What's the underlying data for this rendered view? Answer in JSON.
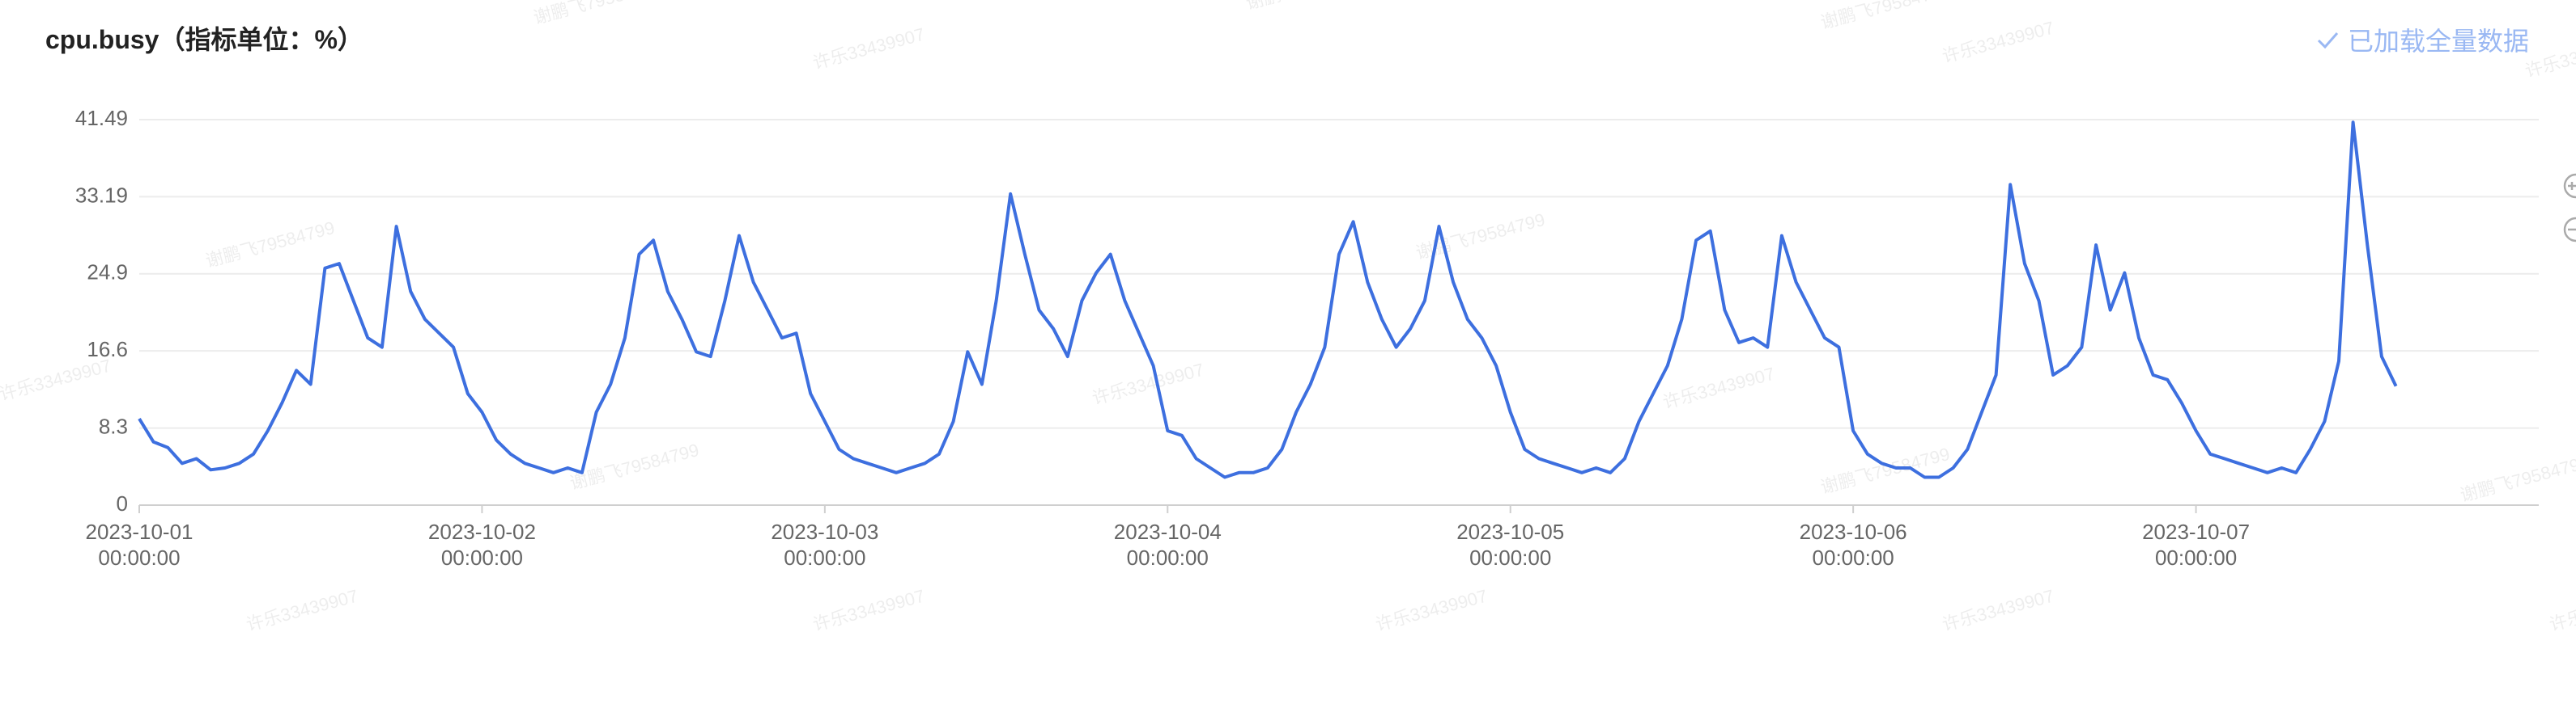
{
  "header": {
    "status_text": "已加载全量数据"
  },
  "watermarks": [
    "谢鹏飞79584799",
    "许乐33439907"
  ],
  "chart_data": {
    "type": "line",
    "title": "cpu.busy（指标单位：%）",
    "color": "#3d6fdf",
    "grid": true,
    "ylim": [
      0,
      41.49
    ],
    "yticks": [
      0,
      8.3,
      16.6,
      24.9,
      33.19,
      41.49
    ],
    "xlim": [
      "2023-10-01 00:00:00",
      "2023-10-08 00:00:00"
    ],
    "xticks": [
      "2023-10-01 00:00:00",
      "2023-10-02 00:00:00",
      "2023-10-03 00:00:00",
      "2023-10-04 00:00:00",
      "2023-10-05 00:00:00",
      "2023-10-06 00:00:00",
      "2023-10-07 00:00:00"
    ],
    "x": [
      "2023-10-01 00:00:00",
      "2023-10-01 01:00:00",
      "2023-10-01 02:00:00",
      "2023-10-01 03:00:00",
      "2023-10-01 04:00:00",
      "2023-10-01 05:00:00",
      "2023-10-01 06:00:00",
      "2023-10-01 07:00:00",
      "2023-10-01 08:00:00",
      "2023-10-01 09:00:00",
      "2023-10-01 10:00:00",
      "2023-10-01 11:00:00",
      "2023-10-01 12:00:00",
      "2023-10-01 13:00:00",
      "2023-10-01 14:00:00",
      "2023-10-01 15:00:00",
      "2023-10-01 16:00:00",
      "2023-10-01 17:00:00",
      "2023-10-01 18:00:00",
      "2023-10-01 19:00:00",
      "2023-10-01 20:00:00",
      "2023-10-01 21:00:00",
      "2023-10-01 22:00:00",
      "2023-10-01 23:00:00",
      "2023-10-02 00:00:00",
      "2023-10-02 01:00:00",
      "2023-10-02 02:00:00",
      "2023-10-02 03:00:00",
      "2023-10-02 04:00:00",
      "2023-10-02 05:00:00",
      "2023-10-02 06:00:00",
      "2023-10-02 07:00:00",
      "2023-10-02 08:00:00",
      "2023-10-02 09:00:00",
      "2023-10-02 10:00:00",
      "2023-10-02 11:00:00",
      "2023-10-02 12:00:00",
      "2023-10-02 13:00:00",
      "2023-10-02 14:00:00",
      "2023-10-02 15:00:00",
      "2023-10-02 16:00:00",
      "2023-10-02 17:00:00",
      "2023-10-02 18:00:00",
      "2023-10-02 19:00:00",
      "2023-10-02 20:00:00",
      "2023-10-02 21:00:00",
      "2023-10-02 22:00:00",
      "2023-10-02 23:00:00",
      "2023-10-03 00:00:00",
      "2023-10-03 01:00:00",
      "2023-10-03 02:00:00",
      "2023-10-03 03:00:00",
      "2023-10-03 04:00:00",
      "2023-10-03 05:00:00",
      "2023-10-03 06:00:00",
      "2023-10-03 07:00:00",
      "2023-10-03 08:00:00",
      "2023-10-03 09:00:00",
      "2023-10-03 10:00:00",
      "2023-10-03 11:00:00",
      "2023-10-03 12:00:00",
      "2023-10-03 13:00:00",
      "2023-10-03 14:00:00",
      "2023-10-03 15:00:00",
      "2023-10-03 16:00:00",
      "2023-10-03 17:00:00",
      "2023-10-03 18:00:00",
      "2023-10-03 19:00:00",
      "2023-10-03 20:00:00",
      "2023-10-03 21:00:00",
      "2023-10-03 22:00:00",
      "2023-10-03 23:00:00",
      "2023-10-04 00:00:00",
      "2023-10-04 01:00:00",
      "2023-10-04 02:00:00",
      "2023-10-04 03:00:00",
      "2023-10-04 04:00:00",
      "2023-10-04 05:00:00",
      "2023-10-04 06:00:00",
      "2023-10-04 07:00:00",
      "2023-10-04 08:00:00",
      "2023-10-04 09:00:00",
      "2023-10-04 10:00:00",
      "2023-10-04 11:00:00",
      "2023-10-04 12:00:00",
      "2023-10-04 13:00:00",
      "2023-10-04 14:00:00",
      "2023-10-04 15:00:00",
      "2023-10-04 16:00:00",
      "2023-10-04 17:00:00",
      "2023-10-04 18:00:00",
      "2023-10-04 19:00:00",
      "2023-10-04 20:00:00",
      "2023-10-04 21:00:00",
      "2023-10-04 22:00:00",
      "2023-10-04 23:00:00",
      "2023-10-05 00:00:00",
      "2023-10-05 01:00:00",
      "2023-10-05 02:00:00",
      "2023-10-05 03:00:00",
      "2023-10-05 04:00:00",
      "2023-10-05 05:00:00",
      "2023-10-05 06:00:00",
      "2023-10-05 07:00:00",
      "2023-10-05 08:00:00",
      "2023-10-05 09:00:00",
      "2023-10-05 10:00:00",
      "2023-10-05 11:00:00",
      "2023-10-05 12:00:00",
      "2023-10-05 13:00:00",
      "2023-10-05 14:00:00",
      "2023-10-05 15:00:00",
      "2023-10-05 16:00:00",
      "2023-10-05 17:00:00",
      "2023-10-05 18:00:00",
      "2023-10-05 19:00:00",
      "2023-10-05 20:00:00",
      "2023-10-05 21:00:00",
      "2023-10-05 22:00:00",
      "2023-10-05 23:00:00",
      "2023-10-06 00:00:00",
      "2023-10-06 01:00:00",
      "2023-10-06 02:00:00",
      "2023-10-06 03:00:00",
      "2023-10-06 04:00:00",
      "2023-10-06 05:00:00",
      "2023-10-06 06:00:00",
      "2023-10-06 07:00:00",
      "2023-10-06 08:00:00",
      "2023-10-06 09:00:00",
      "2023-10-06 10:00:00",
      "2023-10-06 11:00:00",
      "2023-10-06 12:00:00",
      "2023-10-06 13:00:00",
      "2023-10-06 14:00:00",
      "2023-10-06 15:00:00",
      "2023-10-06 16:00:00",
      "2023-10-06 17:00:00",
      "2023-10-06 18:00:00",
      "2023-10-06 19:00:00",
      "2023-10-06 20:00:00",
      "2023-10-06 21:00:00",
      "2023-10-06 22:00:00",
      "2023-10-06 23:00:00",
      "2023-10-07 00:00:00",
      "2023-10-07 01:00:00",
      "2023-10-07 02:00:00",
      "2023-10-07 03:00:00",
      "2023-10-07 04:00:00",
      "2023-10-07 05:00:00",
      "2023-10-07 06:00:00",
      "2023-10-07 07:00:00",
      "2023-10-07 08:00:00",
      "2023-10-07 09:00:00",
      "2023-10-07 10:00:00",
      "2023-10-07 11:00:00",
      "2023-10-07 12:00:00",
      "2023-10-07 13:00:00",
      "2023-10-07 14:00:00"
    ],
    "values": [
      9.3,
      6.8,
      6.2,
      4.5,
      5.0,
      3.8,
      4.0,
      4.5,
      5.5,
      8,
      11,
      14.5,
      13,
      25.5,
      26,
      22,
      18,
      17,
      30,
      23,
      20,
      18.5,
      17,
      12,
      10,
      7,
      5.5,
      4.5,
      4,
      3.5,
      4,
      3.5,
      10,
      13,
      18,
      27,
      28.5,
      23,
      20,
      16.5,
      16,
      22,
      29,
      24,
      21,
      18,
      18.5,
      12,
      9,
      6,
      5,
      4.5,
      4,
      3.5,
      4,
      4.5,
      5.5,
      9,
      16.5,
      13,
      22,
      33.5,
      27,
      21,
      19,
      16,
      22,
      25,
      27,
      22,
      18.5,
      15,
      8,
      7.5,
      5,
      4,
      3,
      3.5,
      3.5,
      4,
      6,
      10,
      13,
      17,
      27,
      30.5,
      24,
      20,
      17,
      19,
      22,
      30,
      24,
      20,
      18,
      15,
      10,
      6,
      5,
      4.5,
      4,
      3.5,
      4,
      3.5,
      5,
      9,
      12,
      15,
      20,
      28.5,
      29.5,
      21,
      17.5,
      18,
      17,
      29,
      24,
      21,
      18,
      17,
      8,
      5.5,
      4.5,
      4,
      4,
      3,
      3,
      4,
      6,
      10,
      14,
      34.5,
      26,
      22,
      14,
      15,
      17,
      28,
      21,
      25,
      18,
      14,
      13.5,
      11,
      8,
      5.5,
      5,
      4.5,
      4,
      3.5,
      4,
      3.5,
      6,
      9,
      15.5,
      41.2,
      28,
      16,
      12.8
    ]
  }
}
